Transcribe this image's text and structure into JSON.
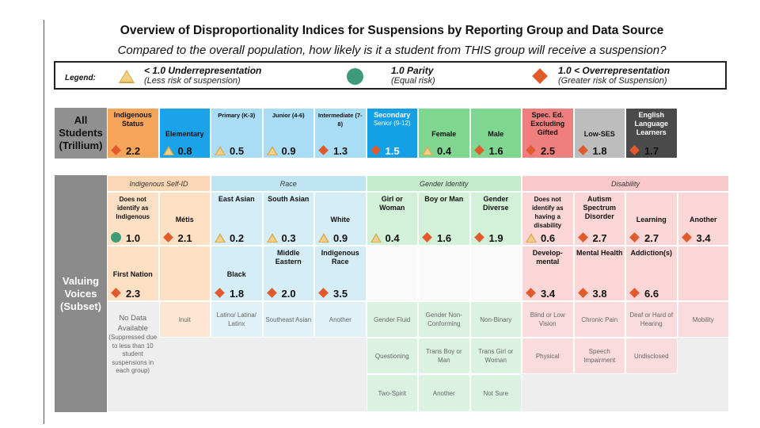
{
  "title": "Overview of Disproportionality Indices for Suspensions by Reporting Group and Data Source",
  "subtitle": "Compared to the overall population, how likely is it a student from THIS group will receive a suspension?",
  "legend": {
    "label": "Legend:",
    "under": {
      "line1": "< 1.0  Underrepresentation",
      "line2": "(Less risk of suspension)"
    },
    "parity": {
      "line1": "1.0  Parity",
      "line2": "(Equal risk)"
    },
    "over": {
      "line1": "1.0 <  Overrepresentation",
      "line2": "(Greater risk of Suspension)"
    }
  },
  "all_students": {
    "row_label": [
      "All",
      "Students",
      "(Trillium)"
    ],
    "cells": [
      {
        "name": "Indigenous Status",
        "value": "2.2",
        "marker": "diamond"
      },
      {
        "name": "Elementary",
        "value": "0.8",
        "marker": "triangle"
      },
      {
        "name": "Primary (K-3)",
        "value": "0.5",
        "marker": "triangle"
      },
      {
        "name": "Junior (4-6)",
        "value": "0.9",
        "marker": "triangle"
      },
      {
        "name": "Intermediate (7-8)",
        "value": "1.3",
        "marker": "diamond"
      },
      {
        "name": "Secondary",
        "sub": "Senior (9-12)",
        "value": "1.5",
        "marker": "diamond"
      },
      {
        "name": "Female",
        "value": "0.4",
        "marker": "triangle"
      },
      {
        "name": "Male",
        "value": "1.6",
        "marker": "diamond"
      },
      {
        "name": "Spec. Ed. Excluding Gifted",
        "value": "2.5",
        "marker": "diamond"
      },
      {
        "name": "Low-SES",
        "value": "1.8",
        "marker": "diamond"
      },
      {
        "name": "English Language Learners",
        "value": "1.7",
        "marker": "diamond"
      }
    ]
  },
  "valuing_voices": {
    "row_label": [
      "Valuing",
      "Voices",
      "(Subset)"
    ],
    "headers": [
      "Indigenous Self-ID",
      "Race",
      "Gender Identity",
      "Disability"
    ],
    "row1": [
      {
        "name": "Does not identify as Indigenous",
        "value": "1.0",
        "marker": "circle"
      },
      {
        "name": "Métis",
        "value": "2.1",
        "marker": "diamond"
      },
      {
        "name": "East Asian",
        "value": "0.2",
        "marker": "triangle"
      },
      {
        "name": "South Asian",
        "value": "0.3",
        "marker": "triangle"
      },
      {
        "name": "White",
        "value": "0.9",
        "marker": "triangle"
      },
      {
        "name": "Girl or Woman",
        "value": "0.4",
        "marker": "triangle"
      },
      {
        "name": "Boy or Man",
        "value": "1.6",
        "marker": "diamond"
      },
      {
        "name": "Gender Diverse",
        "value": "1.9",
        "marker": "diamond"
      },
      {
        "name": "Does not identify as having a disability",
        "value": "0.6",
        "marker": "triangle"
      },
      {
        "name": "Autism Spectrum Disorder",
        "value": "2.7",
        "marker": "diamond"
      },
      {
        "name": "Learning",
        "value": "2.7",
        "marker": "diamond"
      },
      {
        "name": "Another",
        "value": "3.4",
        "marker": "diamond"
      }
    ],
    "row2": [
      {
        "name": "First Nation",
        "value": "2.3",
        "marker": "diamond"
      },
      {
        "name": "Black",
        "value": "1.8",
        "marker": "diamond"
      },
      {
        "name": "Middle Eastern",
        "value": "2.0",
        "marker": "diamond"
      },
      {
        "name": "Indigenous Race",
        "value": "3.5",
        "marker": "diamond"
      },
      {
        "name": "Develop-mental",
        "value": "3.4",
        "marker": "diamond"
      },
      {
        "name": "Mental Health",
        "value": "3.8",
        "marker": "diamond"
      },
      {
        "name": "Addiction(s)",
        "value": "6.6",
        "marker": "diamond"
      }
    ],
    "no_data": {
      "title": "No Data Available",
      "note": "(Suppressed due to less than 10 student suspensions in each group)",
      "row3": [
        "Inuit",
        "Latino/ Latina/ Latinx",
        "Southeast Asian",
        "Another",
        "Gender Fluid",
        "Gender Non-Conforming",
        "Non-Binary",
        "Blind or Low Vision",
        "Chronic Pain",
        "Deaf or Hard of Hearing",
        "Mobility"
      ],
      "row4": [
        "Questioning",
        "Trans Boy or Man",
        "Trans Girl or Woman",
        "Physical",
        "Speech Impairment",
        "Undisclosed"
      ],
      "row5": [
        "Two-Spirit",
        "Another",
        "Not Sure"
      ]
    }
  },
  "colors": {
    "indigenous": "#f7a55a",
    "elementary": "#1aa3e8",
    "elem_sub": "#a9ddf5",
    "secondary": "#14a0e6",
    "gender": "#7fd691",
    "disability": "#f07e7e",
    "lowses": "#bdbdbd",
    "ell": "#4a4a4a",
    "vv_indig": "#fde0c4",
    "vv_race": "#d5edf7",
    "vv_gender": "#d3f0d8",
    "vv_dis": "#fbd6d6",
    "grey": "#eeeeee"
  }
}
